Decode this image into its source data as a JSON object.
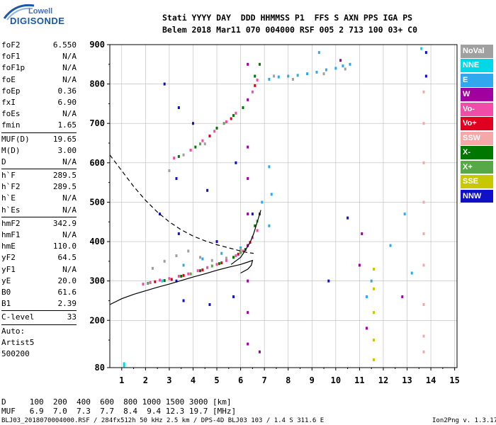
{
  "logo": {
    "top": "Lowell",
    "main": "DIGISONDE"
  },
  "header": {
    "line1": "Stati YYYY DAY  DDD HHMMSS P1  FFS S AXN PPS IGA PS",
    "line2": "Belem 2018 Mar11 070 004000 RSF 005 2 713 100 03+ C0"
  },
  "parameters": {
    "groups": [
      [
        {
          "name": "foF2",
          "value": "6.550"
        },
        {
          "name": "foF1",
          "value": "N/A"
        },
        {
          "name": "foF1p",
          "value": "N/A"
        },
        {
          "name": "foE",
          "value": "N/A"
        },
        {
          "name": "foEp",
          "value": "0.36"
        },
        {
          "name": "fxI",
          "value": "6.90"
        },
        {
          "name": "foEs",
          "value": "N/A"
        },
        {
          "name": "fmin",
          "value": "1.65"
        }
      ],
      [
        {
          "name": "MUF(D)",
          "value": "19.65"
        },
        {
          "name": "M(D)",
          "value": "3.00"
        },
        {
          "name": "D",
          "value": "N/A"
        }
      ],
      [
        {
          "name": "h`F",
          "value": "289.5"
        },
        {
          "name": "h`F2",
          "value": "289.5"
        },
        {
          "name": "h`E",
          "value": "N/A"
        },
        {
          "name": "h`Es",
          "value": "N/A"
        }
      ],
      [
        {
          "name": "hmF2",
          "value": "342.9"
        },
        {
          "name": "hmF1",
          "value": "N/A"
        },
        {
          "name": "hmE",
          "value": "110.0"
        },
        {
          "name": "yF2",
          "value": "64.5"
        },
        {
          "name": "yF1",
          "value": "N/A"
        },
        {
          "name": "yE",
          "value": "20.0"
        },
        {
          "name": "B0",
          "value": "61.6"
        },
        {
          "name": "B1",
          "value": "2.39"
        }
      ],
      [
        {
          "name": "C-level",
          "value": "33"
        }
      ]
    ],
    "auto": [
      "Auto:",
      "Artist5",
      "500200"
    ]
  },
  "footer": {
    "d_line": "D     100  200  400  600  800 1000 1500 3000 [km]",
    "muf_line": "MUF   6.9  7.0  7.3  7.7  8.4  9.4 12.3 19.7 [MHz]",
    "file_line": "BLJ03_2018070004000.RSF / 284fx512h 50 kHz 2.5 km / DPS-4D BLJ03 103 / 1.4 S 311.6 E",
    "version": "Ion2Png v. 1.3.17"
  },
  "legend": [
    {
      "label": "NoVal",
      "color": "#a0a0a0"
    },
    {
      "label": "NNE",
      "color": "#00d8e8"
    },
    {
      "label": "E",
      "color": "#30a8f0"
    },
    {
      "label": "W",
      "color": "#a000a0"
    },
    {
      "label": "Vo-",
      "color": "#f04ca8"
    },
    {
      "label": "Vo+",
      "color": "#e00020"
    },
    {
      "label": "SSW",
      "color": "#f4a8a8"
    },
    {
      "label": "X-",
      "color": "#007800"
    },
    {
      "label": "X+",
      "color": "#58a848"
    },
    {
      "label": "SSE",
      "color": "#c8c800"
    },
    {
      "label": "NNW",
      "color": "#1010c8"
    }
  ],
  "chart_data": {
    "type": "scatter",
    "xlabel": "",
    "ylabel": "",
    "xlim": [
      0.5,
      15.1
    ],
    "ylim": [
      80,
      900
    ],
    "x_ticks": [
      1,
      2,
      3,
      4,
      5,
      6,
      7,
      8,
      9,
      10,
      11,
      12,
      13,
      14,
      15
    ],
    "y_ticks": [
      80,
      200,
      300,
      400,
      500,
      600,
      700,
      800,
      900
    ],
    "grid": true,
    "series": [
      {
        "color": "#f04ca8",
        "points": [
          [
            1.9,
            292
          ],
          [
            2.2,
            296
          ],
          [
            2.6,
            302
          ],
          [
            3.0,
            306
          ],
          [
            3.4,
            312
          ],
          [
            3.8,
            318
          ],
          [
            4.2,
            326
          ],
          [
            4.6,
            334
          ],
          [
            5.0,
            342
          ],
          [
            5.4,
            352
          ],
          [
            5.8,
            364
          ],
          [
            6.1,
            376
          ],
          [
            6.3,
            390
          ],
          [
            6.5,
            410
          ],
          [
            6.7,
            428
          ],
          [
            3.2,
            612
          ],
          [
            3.9,
            632
          ],
          [
            4.4,
            656
          ],
          [
            4.9,
            680
          ],
          [
            5.4,
            704
          ],
          [
            5.8,
            726
          ],
          [
            6.5,
            780
          ],
          [
            6.7,
            810
          ]
        ]
      },
      {
        "color": "#e00020",
        "points": [
          [
            2.4,
            298
          ],
          [
            3.1,
            304
          ],
          [
            3.6,
            314
          ],
          [
            4.4,
            328
          ],
          [
            5.2,
            346
          ],
          [
            5.9,
            368
          ],
          [
            6.4,
            398
          ],
          [
            4.7,
            668
          ],
          [
            5.6,
            712
          ],
          [
            6.6,
            796
          ]
        ]
      },
      {
        "color": "#007800",
        "points": [
          [
            2.8,
            301
          ],
          [
            3.5,
            312
          ],
          [
            4.3,
            326
          ],
          [
            5.1,
            344
          ],
          [
            5.7,
            360
          ],
          [
            6.2,
            380
          ],
          [
            6.6,
            440
          ],
          [
            6.8,
            470
          ],
          [
            3.4,
            616
          ],
          [
            4.1,
            640
          ],
          [
            5.0,
            688
          ],
          [
            5.7,
            720
          ],
          [
            6.1,
            740
          ],
          [
            6.6,
            820
          ],
          [
            6.8,
            850
          ]
        ]
      },
      {
        "color": "#58a848",
        "points": [
          [
            2.1,
            294
          ],
          [
            3.9,
            318
          ],
          [
            4.8,
            338
          ],
          [
            6.0,
            372
          ],
          [
            6.7,
            452
          ],
          [
            4.3,
            648
          ],
          [
            5.3,
            700
          ]
        ]
      },
      {
        "color": "#30a8f0",
        "points": [
          [
            7.2,
            812
          ],
          [
            7.6,
            818
          ],
          [
            8.0,
            820
          ],
          [
            8.4,
            822
          ],
          [
            8.8,
            826
          ],
          [
            9.2,
            830
          ],
          [
            9.6,
            836
          ],
          [
            10.0,
            840
          ],
          [
            10.3,
            846
          ],
          [
            10.6,
            850
          ],
          [
            3.6,
            340
          ],
          [
            4.4,
            356
          ],
          [
            5.2,
            370
          ],
          [
            6.0,
            384
          ],
          [
            7.2,
            590
          ],
          [
            7.3,
            520
          ],
          [
            7.2,
            440
          ],
          [
            11.5,
            300
          ],
          [
            12.3,
            390
          ],
          [
            12.9,
            470
          ],
          [
            11.3,
            260
          ],
          [
            13.2,
            320
          ],
          [
            9.3,
            880
          ],
          [
            6.9,
            500
          ]
        ]
      },
      {
        "color": "#a0a0a0",
        "points": [
          [
            2.3,
            332
          ],
          [
            2.8,
            350
          ],
          [
            3.3,
            364
          ],
          [
            3.8,
            376
          ],
          [
            4.3,
            360
          ],
          [
            4.8,
            352
          ],
          [
            5.4,
            358
          ],
          [
            6.0,
            380
          ],
          [
            3.0,
            580
          ],
          [
            3.6,
            620
          ],
          [
            4.5,
            648
          ],
          [
            7.4,
            820
          ],
          [
            8.2,
            812
          ],
          [
            9.5,
            826
          ],
          [
            10.4,
            838
          ]
        ]
      },
      {
        "color": "#1010c8",
        "points": [
          [
            3.3,
            300
          ],
          [
            3.4,
            420
          ],
          [
            3.3,
            560
          ],
          [
            3.4,
            740
          ],
          [
            5.0,
            400
          ],
          [
            5.8,
            600
          ],
          [
            4.6,
            530
          ],
          [
            2.6,
            470
          ],
          [
            4.0,
            700
          ],
          [
            3.6,
            250
          ],
          [
            5.7,
            260
          ],
          [
            9.7,
            300
          ],
          [
            10.5,
            460
          ],
          [
            6.5,
            470
          ],
          [
            13.8,
            880
          ],
          [
            13.8,
            820
          ],
          [
            4.7,
            240
          ],
          [
            2.8,
            800
          ]
        ]
      },
      {
        "color": "#a000a0",
        "points": [
          [
            6.3,
            850
          ],
          [
            6.3,
            760
          ],
          [
            6.3,
            640
          ],
          [
            6.3,
            560
          ],
          [
            6.3,
            470
          ],
          [
            6.3,
            390
          ],
          [
            6.3,
            300
          ],
          [
            6.3,
            220
          ],
          [
            6.3,
            140
          ],
          [
            10.2,
            860
          ],
          [
            11.1,
            420
          ],
          [
            11.3,
            180
          ],
          [
            11.0,
            340
          ],
          [
            12.8,
            260
          ],
          [
            6.8,
            120
          ]
        ]
      },
      {
        "color": "#c8c800",
        "points": [
          [
            11.6,
            280
          ],
          [
            11.6,
            220
          ],
          [
            11.6,
            150
          ],
          [
            11.6,
            100
          ],
          [
            11.6,
            330
          ]
        ]
      },
      {
        "color": "#f4a8a8",
        "points": [
          [
            13.7,
            700
          ],
          [
            13.7,
            600
          ],
          [
            13.7,
            500
          ],
          [
            13.7,
            420
          ],
          [
            13.7,
            340
          ],
          [
            13.7,
            240
          ],
          [
            13.7,
            160
          ],
          [
            13.7,
            120
          ],
          [
            13.7,
            780
          ]
        ]
      },
      {
        "color": "#00d8e8",
        "points": [
          [
            1.1,
            85
          ],
          [
            1.1,
            90
          ],
          [
            13.6,
            890
          ],
          [
            2.7,
            300
          ]
        ]
      }
    ],
    "profile_curve": {
      "style": "solid",
      "points": [
        [
          0.5,
          240
        ],
        [
          1.0,
          255
        ],
        [
          1.5,
          266
        ],
        [
          2.0,
          275
        ],
        [
          2.5,
          284
        ],
        [
          3.0,
          292
        ],
        [
          3.5,
          301
        ],
        [
          4.0,
          310
        ],
        [
          4.5,
          318
        ],
        [
          5.0,
          327
        ],
        [
          5.5,
          335
        ],
        [
          6.0,
          342
        ],
        [
          6.3,
          348
        ],
        [
          6.5,
          352
        ],
        [
          6.45,
          340
        ],
        [
          6.3,
          330
        ],
        [
          6.0,
          320
        ]
      ]
    },
    "trace_curve": {
      "style": "solid",
      "points": [
        [
          5.6,
          342
        ],
        [
          6.0,
          360
        ],
        [
          6.2,
          378
        ],
        [
          6.4,
          398
        ],
        [
          6.55,
          420
        ],
        [
          6.65,
          440
        ],
        [
          6.75,
          460
        ],
        [
          6.85,
          480
        ]
      ]
    },
    "model_curve": {
      "style": "dashed",
      "points": [
        [
          0.5,
          620
        ],
        [
          1.0,
          580
        ],
        [
          1.5,
          540
        ],
        [
          2.0,
          505
        ],
        [
          2.5,
          475
        ],
        [
          3.0,
          450
        ],
        [
          3.5,
          430
        ],
        [
          4.0,
          414
        ],
        [
          4.5,
          402
        ],
        [
          5.0,
          392
        ],
        [
          5.5,
          384
        ],
        [
          6.0,
          376
        ],
        [
          6.3,
          372
        ],
        [
          6.55,
          370
        ]
      ]
    }
  }
}
